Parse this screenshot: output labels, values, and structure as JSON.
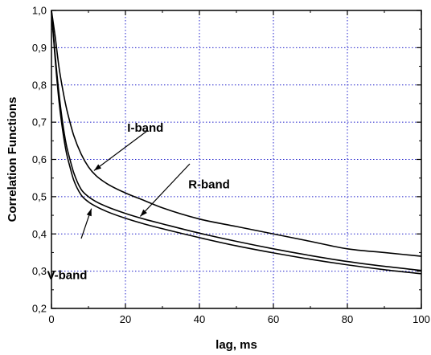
{
  "chart_data": {
    "type": "line",
    "xlabel": "lag, ms",
    "ylabel": "Correlation Functions",
    "xlim": [
      0,
      100
    ],
    "ylim": [
      0.2,
      1.0
    ],
    "x_ticks": [
      "0",
      "20",
      "40",
      "60",
      "80",
      "100"
    ],
    "y_ticks": [
      "0,2",
      "0,3",
      "0,4",
      "0,5",
      "0,6",
      "0,7",
      "0,8",
      "0,9",
      "1,0"
    ],
    "grid": true,
    "grid_style": "dotted",
    "colors": {
      "grid": "#2222cc",
      "line": "#000000",
      "axis": "#000000"
    },
    "series": [
      {
        "name": "I-band",
        "x": [
          0,
          1,
          2,
          3,
          4,
          5,
          6,
          8,
          10,
          12,
          15,
          20,
          25,
          30,
          40,
          50,
          60,
          70,
          80,
          90,
          100
        ],
        "y": [
          1.0,
          0.93,
          0.85,
          0.79,
          0.74,
          0.7,
          0.665,
          0.615,
          0.58,
          0.557,
          0.535,
          0.51,
          0.49,
          0.47,
          0.44,
          0.42,
          0.4,
          0.38,
          0.36,
          0.35,
          0.34
        ]
      },
      {
        "name": "R-band",
        "x": [
          0,
          1,
          2,
          3,
          4,
          5,
          6,
          8,
          10,
          12,
          15,
          20,
          25,
          30,
          40,
          50,
          60,
          70,
          80,
          90,
          100
        ],
        "y": [
          1.0,
          0.88,
          0.78,
          0.7,
          0.64,
          0.6,
          0.565,
          0.52,
          0.5,
          0.487,
          0.473,
          0.455,
          0.44,
          0.427,
          0.402,
          0.38,
          0.36,
          0.342,
          0.326,
          0.313,
          0.302
        ]
      },
      {
        "name": "V-band",
        "x": [
          0,
          1,
          2,
          3,
          4,
          5,
          6,
          8,
          10,
          12,
          15,
          20,
          25,
          30,
          40,
          50,
          60,
          70,
          80,
          90,
          100
        ],
        "y": [
          1.0,
          0.87,
          0.76,
          0.68,
          0.62,
          0.58,
          0.545,
          0.505,
          0.486,
          0.474,
          0.46,
          0.442,
          0.427,
          0.414,
          0.39,
          0.368,
          0.349,
          0.332,
          0.317,
          0.304,
          0.293
        ]
      }
    ],
    "annotations": [
      {
        "text": "I-band",
        "target_series": "I-band",
        "label_at": [
          20.5,
          0.674
        ],
        "arrow_to": [
          11.5,
          0.57
        ]
      },
      {
        "text": "R-band",
        "target_series": "R-band",
        "label_at": [
          37.0,
          0.522
        ],
        "arrow_to": [
          24.0,
          0.447
        ]
      },
      {
        "text": "V-band",
        "target_series": "V-band",
        "label_at": [
          -1.2,
          0.279
        ],
        "arrow_to": [
          10.8,
          0.468
        ]
      }
    ]
  }
}
